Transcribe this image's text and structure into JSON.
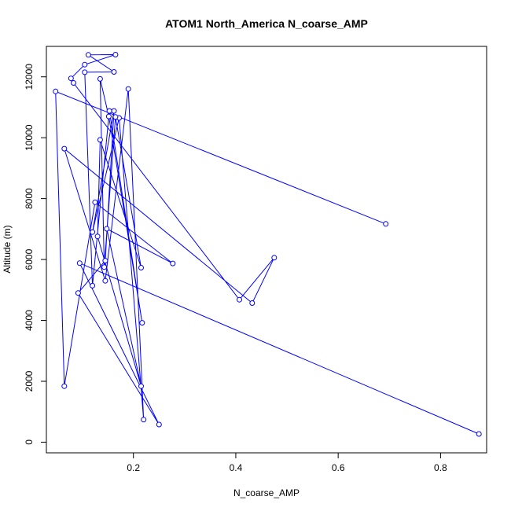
{
  "chart_data": {
    "type": "line",
    "title": "ATOM1 North_America N_coarse_AMP",
    "xlabel": "N_coarse_AMP",
    "ylabel": "Altitude (m)",
    "xlim": [
      0.03,
      0.89
    ],
    "ylim": [
      -350,
      13000
    ],
    "xticks": [
      0.2,
      0.4,
      0.6,
      0.8
    ],
    "xtick_labels": [
      "0.2",
      "0.4",
      "0.6",
      "0.8"
    ],
    "yticks": [
      0,
      2000,
      4000,
      6000,
      8000,
      10000,
      12000
    ],
    "ytick_labels": [
      "0",
      "2000",
      "4000",
      "6000",
      "8000",
      "10000",
      "12000"
    ],
    "grid": false,
    "markers": "open-circle",
    "color": "#0000ff",
    "series": [
      {
        "x": [
          0.875,
          0.095,
          0.25,
          0.092,
          0.145,
          0.162,
          0.12,
          0.172,
          0.22,
          0.19,
          0.145,
          0.065,
          0.432,
          0.475,
          0.407,
          0.083,
          0.078,
          0.105,
          0.165,
          0.112,
          0.162,
          0.105,
          0.12,
          0.153,
          0.217,
          0.152,
          0.135,
          0.143,
          0.165,
          0.215,
          0.135,
          0.13,
          0.215,
          0.148,
          0.277,
          0.125,
          0.065,
          0.048,
          0.693
        ],
        "y": [
          270,
          5880,
          580,
          4900,
          5960,
          10880,
          6900,
          10650,
          740,
          11600,
          5300,
          9640,
          4570,
          6060,
          4680,
          11800,
          11950,
          12400,
          12730,
          12720,
          12160,
          12150,
          5140,
          10880,
          3920,
          10700,
          11930,
          5750,
          10680,
          5730,
          9930,
          6760,
          1840,
          7010,
          5870,
          7880,
          1840,
          11520,
          7170
        ]
      }
    ]
  }
}
